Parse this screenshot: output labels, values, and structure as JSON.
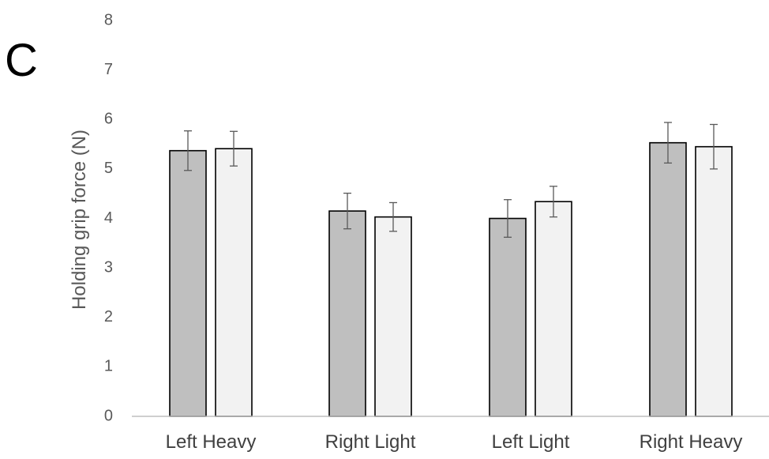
{
  "panel_label": "C",
  "chart_data": {
    "type": "bar",
    "title": "",
    "xlabel": "",
    "ylabel": "Holding grip force (N)",
    "ylim": [
      0,
      8
    ],
    "yticks": [
      0,
      1,
      2,
      3,
      4,
      5,
      6,
      7,
      8
    ],
    "categories": [
      "Left Heavy",
      "Right Light",
      "Left Light",
      "Right Heavy"
    ],
    "series": [
      {
        "color": "#bfbfbf",
        "values": [
          5.37,
          4.15,
          4.0,
          5.53
        ],
        "errors": [
          0.4,
          0.36,
          0.38,
          0.41
        ]
      },
      {
        "color": "#f2f2f2",
        "values": [
          5.41,
          4.03,
          4.34,
          5.45
        ],
        "errors": [
          0.35,
          0.29,
          0.31,
          0.45
        ]
      }
    ],
    "grid": false,
    "legend": "none"
  }
}
